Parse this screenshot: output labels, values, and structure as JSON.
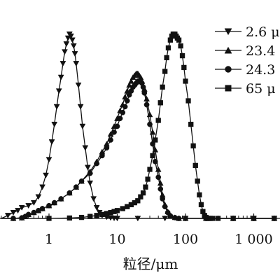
{
  "chart_data": {
    "type": "line",
    "x_scale": "log",
    "xlim": [
      0.2,
      2000
    ],
    "ylim": [
      0,
      100
    ],
    "xticks": [
      1,
      10,
      100,
      1000
    ],
    "xtick_labels": [
      "1",
      "10",
      "100",
      "1 000"
    ],
    "xlabel": "粒径/μm",
    "ylabel": "",
    "grid": false,
    "legend_position": "top-right",
    "series": [
      {
        "name": "2.6 μ",
        "marker": "triangle-down",
        "x": [
          0.2,
          0.25,
          0.3,
          0.35,
          0.4,
          0.5,
          0.6,
          0.7,
          0.8,
          0.9,
          1.0,
          1.1,
          1.2,
          1.3,
          1.4,
          1.5,
          1.6,
          1.7,
          1.8,
          1.9,
          2.0,
          2.1,
          2.2,
          2.3,
          2.4,
          2.5,
          2.7,
          2.9,
          3.1,
          3.4,
          3.7,
          4.0,
          4.5,
          5.0,
          5.5,
          6.0,
          7.0,
          8.0,
          9.0,
          10,
          20,
          50,
          100,
          200,
          500,
          1000,
          2000
        ],
        "y": [
          0.0,
          1.5,
          3.0,
          4.0,
          5.5,
          6.5,
          8.0,
          11.0,
          16.0,
          22.0,
          30.0,
          39.0,
          48.0,
          57.0,
          65.0,
          72.0,
          79.0,
          85.0,
          89.0,
          92.0,
          94.0,
          93.0,
          91.0,
          88.0,
          84.0,
          79.0,
          68.0,
          57.0,
          47.0,
          36.0,
          26.0,
          18.0,
          10.0,
          5.5,
          3.0,
          1.5,
          0.7,
          0.3,
          0.1,
          0.0,
          0.0,
          0.0,
          0.0,
          0.0,
          0.0,
          0.0,
          0.0
        ]
      },
      {
        "name": "23.4",
        "marker": "triangle-up",
        "x": [
          0.2,
          0.3,
          0.4,
          0.45,
          0.5,
          0.6,
          0.7,
          0.8,
          1.0,
          1.2,
          1.5,
          2.0,
          2.5,
          3.0,
          4.0,
          5.0,
          6.0,
          7.0,
          8.0,
          9.0,
          10,
          11,
          12,
          13,
          14,
          15,
          16,
          17,
          18,
          19,
          20,
          21,
          22,
          23,
          25,
          27,
          30,
          33,
          36,
          40,
          43,
          46,
          50,
          55,
          60,
          70,
          80,
          100,
          200,
          500,
          1000,
          2000
        ],
        "y": [
          0.0,
          0.0,
          0.3,
          1.0,
          2.0,
          3.0,
          4.0,
          5.0,
          6.5,
          8.0,
          10.0,
          13.0,
          16.0,
          19.0,
          24.0,
          29.0,
          34.0,
          38.0,
          43.0,
          47.0,
          51.0,
          55.0,
          58.0,
          62.0,
          65.0,
          68.0,
          70.0,
          72.0,
          73.0,
          74.0,
          74.0,
          73.0,
          72.0,
          70.0,
          66.0,
          61.0,
          53.0,
          44.0,
          35.0,
          25.0,
          18.0,
          12.0,
          7.0,
          3.5,
          1.5,
          0.5,
          0.0,
          0.0,
          0.0,
          0.0,
          0.0,
          0.0
        ]
      },
      {
        "name": "24.3",
        "marker": "circle",
        "x": [
          0.2,
          0.3,
          0.4,
          0.45,
          0.5,
          0.6,
          0.7,
          0.8,
          1.0,
          1.2,
          1.5,
          2.0,
          2.5,
          3.0,
          4.0,
          5.0,
          6.0,
          7.0,
          8.0,
          9.0,
          10,
          11,
          12,
          13,
          14,
          15,
          16,
          17,
          18,
          19,
          20,
          21,
          22,
          23,
          24,
          25,
          27,
          30,
          33,
          36,
          40,
          43,
          46,
          50,
          55,
          60,
          70,
          80,
          100,
          200,
          500,
          1000,
          2000
        ],
        "y": [
          0.0,
          0.0,
          0.3,
          1.0,
          2.0,
          3.0,
          4.0,
          5.0,
          6.5,
          8.0,
          10.0,
          13.0,
          16.0,
          19.0,
          23.0,
          28.0,
          32.0,
          36.0,
          40.0,
          44.0,
          47.0,
          51.0,
          54.0,
          57.0,
          60.0,
          63.0,
          65.0,
          67.0,
          68.0,
          69.0,
          70.0,
          70.0,
          70.0,
          69.0,
          67.0,
          64.0,
          58.0,
          48.0,
          38.0,
          29.0,
          21.0,
          15.0,
          10.0,
          6.0,
          3.0,
          1.3,
          0.4,
          0.0,
          0.0,
          0.0,
          0.0,
          0.0,
          0.0
        ]
      },
      {
        "name": "65 μ",
        "marker": "square",
        "x": [
          0.2,
          1.0,
          2.0,
          3.0,
          4.0,
          5.0,
          6.0,
          7.0,
          8.0,
          9.0,
          10,
          12,
          14,
          16,
          18,
          20,
          22,
          24,
          26,
          28,
          30,
          33,
          36,
          40,
          43,
          46,
          50,
          53,
          56,
          60,
          63,
          66,
          70,
          73,
          76,
          80,
          85,
          90,
          95,
          100,
          110,
          120,
          130,
          140,
          150,
          160,
          170,
          180,
          190,
          200,
          210,
          220,
          230,
          250,
          300,
          500,
          1000,
          2000
        ],
        "y": [
          0.0,
          0.0,
          0.2,
          0.5,
          1.0,
          1.5,
          2.0,
          2.5,
          3.0,
          3.5,
          4.0,
          5.0,
          6.0,
          7.0,
          8.0,
          9.0,
          11.0,
          13.0,
          16.0,
          20.0,
          25.0,
          32.0,
          40.0,
          50.0,
          59.0,
          67.0,
          75.0,
          82.0,
          87.0,
          91.0,
          93.0,
          94.0,
          94.0,
          93.0,
          92.0,
          91.0,
          88.0,
          83.0,
          77.0,
          70.0,
          60.0,
          48.0,
          37.0,
          27.0,
          19.0,
          12.0,
          7.0,
          3.5,
          1.5,
          0.5,
          0.0,
          0.0,
          0.0,
          0.0,
          0.0,
          0.0,
          0.0,
          0.0
        ]
      }
    ]
  }
}
